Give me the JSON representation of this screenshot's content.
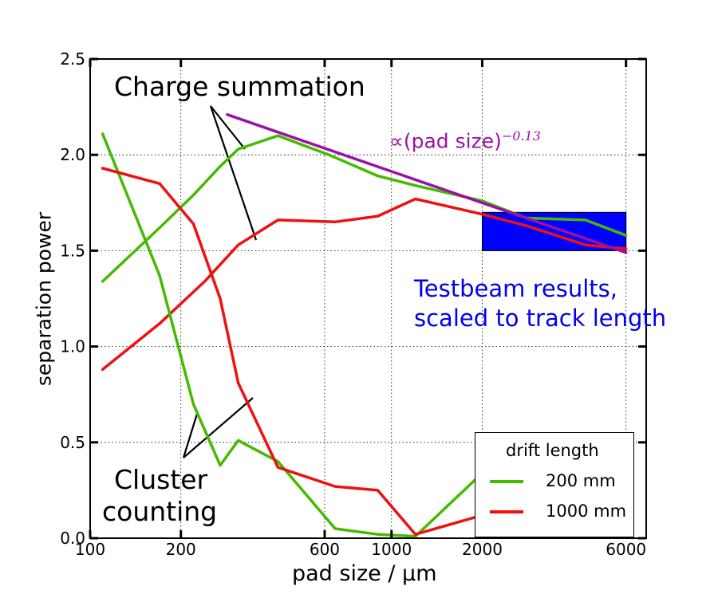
{
  "chart_data": {
    "type": "line",
    "xscale": "log",
    "xlabel": "pad size / μm",
    "ylabel": "separation power",
    "xlim": [
      100,
      7000
    ],
    "ylim": [
      0.0,
      2.5
    ],
    "grid": true,
    "xticks": [
      100,
      200,
      600,
      1000,
      2000,
      6000
    ],
    "xtick_labels": [
      "100",
      "200",
      "600",
      "1000",
      "2000",
      "6000"
    ],
    "yticks": [
      0.0,
      0.5,
      1.0,
      1.5,
      2.0,
      2.5
    ],
    "ytick_labels": [
      "0.0",
      "0.5",
      "1.0",
      "1.5",
      "2.0",
      "2.5"
    ],
    "series": [
      {
        "name": "200 mm charge summation",
        "group": "200 mm",
        "color": "#44bb00",
        "x": [
          110,
          170,
          220,
          270,
          310,
          420,
          620,
          900,
          1200,
          2000,
          2800,
          4400,
          6000
        ],
        "y": [
          1.34,
          1.62,
          1.79,
          1.94,
          2.03,
          2.1,
          2.0,
          1.89,
          1.84,
          1.76,
          1.67,
          1.66,
          1.58
        ]
      },
      {
        "name": "1000 mm charge summation",
        "group": "1000 mm",
        "color": "#ee1111",
        "x": [
          110,
          170,
          240,
          310,
          420,
          650,
          900,
          1200,
          2000,
          2800,
          4400,
          6000
        ],
        "y": [
          0.88,
          1.12,
          1.34,
          1.53,
          1.66,
          1.65,
          1.68,
          1.77,
          1.69,
          1.63,
          1.53,
          1.51
        ]
      },
      {
        "name": "200 mm cluster counting",
        "group": "200 mm",
        "color": "#44bb00",
        "x": [
          110,
          170,
          220,
          270,
          310,
          420,
          650,
          900,
          1200,
          2000
        ],
        "y": [
          2.11,
          1.37,
          0.7,
          0.38,
          0.51,
          0.4,
          0.05,
          0.02,
          0.01,
          0.34
        ]
      },
      {
        "name": "1000 mm cluster counting",
        "group": "1000 mm",
        "color": "#ee1111",
        "x": [
          110,
          170,
          220,
          270,
          310,
          420,
          650,
          900,
          1200,
          2000
        ],
        "y": [
          1.93,
          1.85,
          1.64,
          1.25,
          0.81,
          0.37,
          0.27,
          0.25,
          0.02,
          0.12
        ]
      },
      {
        "name": "fit",
        "group": "fit",
        "color": "#9b10a6",
        "x": [
          285,
          6000
        ],
        "y": [
          2.21,
          1.49
        ]
      }
    ],
    "testbeam_box": {
      "x": [
        2000,
        6000
      ],
      "y": [
        1.5,
        1.7
      ],
      "color": "#0000ff"
    },
    "annotations": {
      "charge_summation": "Charge summation",
      "cluster_counting_line1": "Cluster",
      "cluster_counting_line2": "counting",
      "power_law_prefix": "∝(pad size)",
      "power_law_exponent": "−0.13",
      "testbeam_line1": "Testbeam results,",
      "testbeam_line2": "scaled to track length"
    },
    "legend": {
      "title": "drift length",
      "placement": "lower-right",
      "entries": [
        {
          "label": "200 mm",
          "color": "#44bb00"
        },
        {
          "label": "1000 mm",
          "color": "#ee1111"
        }
      ]
    }
  }
}
